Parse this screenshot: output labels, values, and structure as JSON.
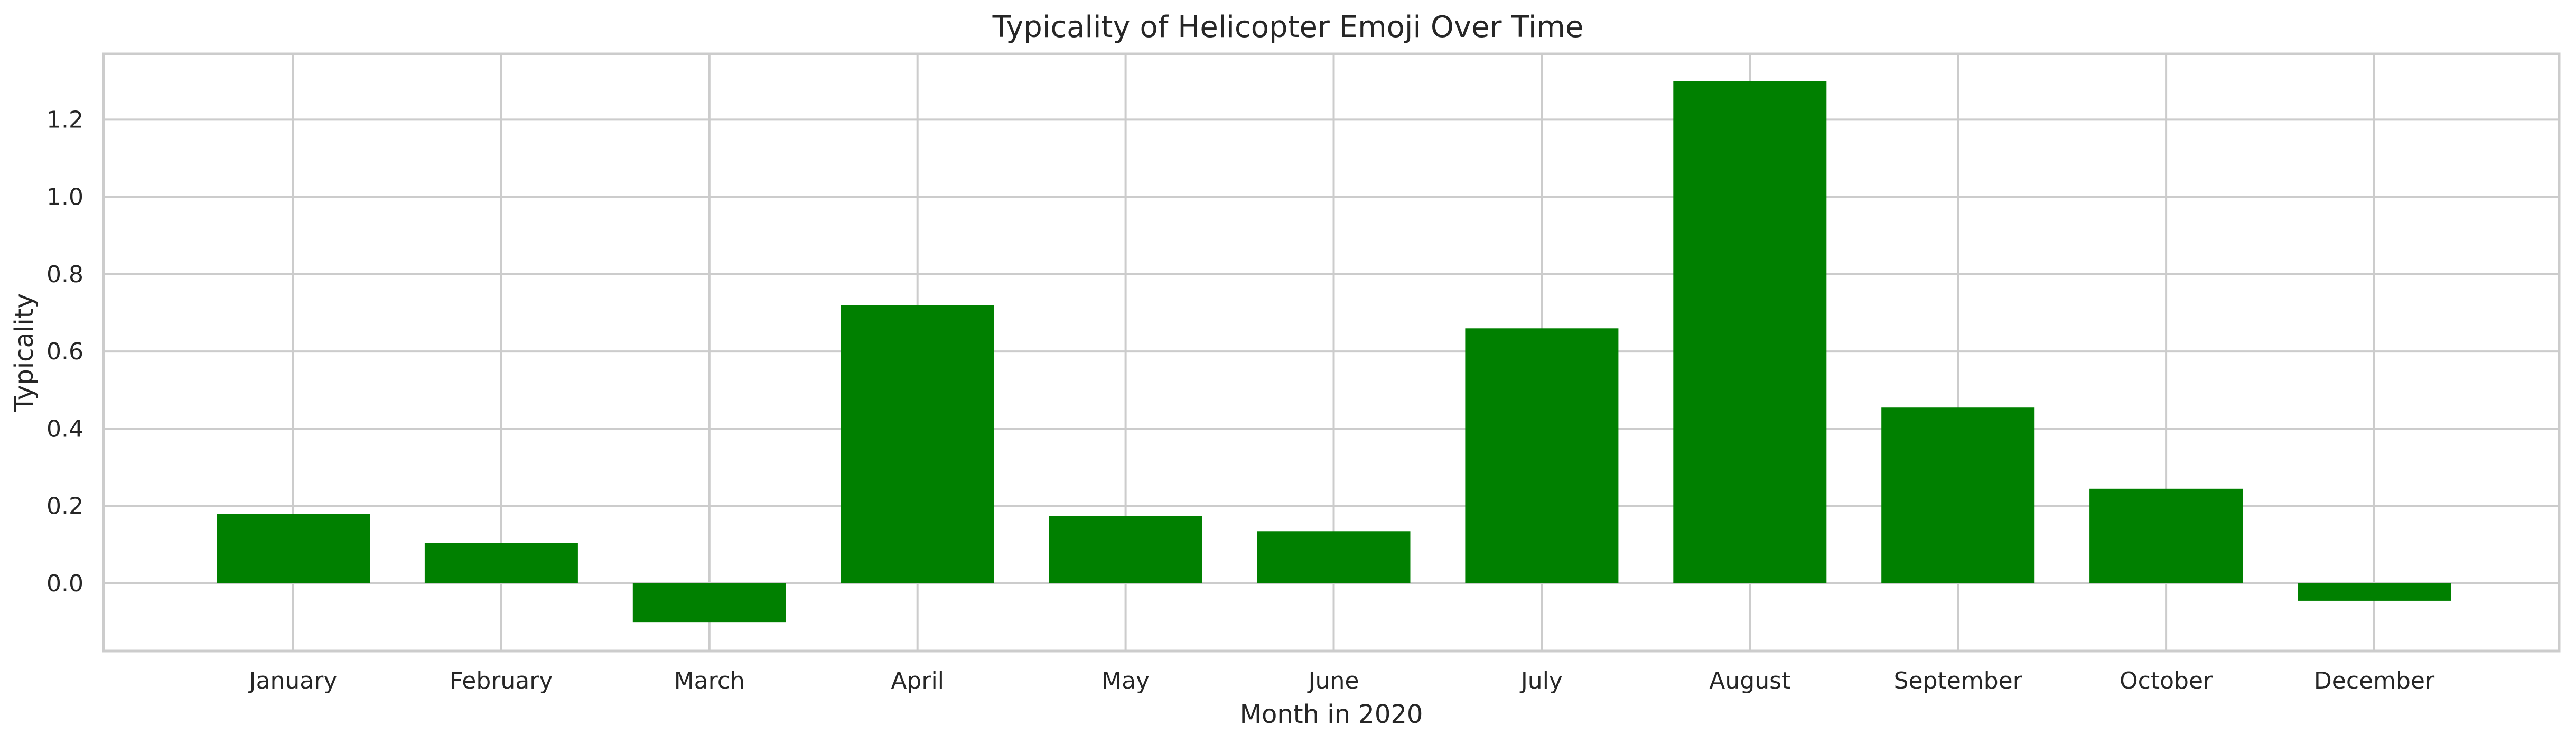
{
  "chart_data": {
    "type": "bar",
    "title": "Typicality of Helicopter Emoji Over Time",
    "xlabel": "Month in 2020",
    "ylabel": "Typicality",
    "categories": [
      "January",
      "February",
      "March",
      "April",
      "May",
      "June",
      "July",
      "August",
      "September",
      "October",
      "December"
    ],
    "values": [
      0.18,
      0.105,
      -0.1,
      0.72,
      0.175,
      0.135,
      0.66,
      1.3,
      0.455,
      0.245,
      -0.045
    ],
    "ylim": [
      -0.175,
      1.37
    ],
    "yticks": [
      0.0,
      0.2,
      0.4,
      0.6,
      0.8,
      1.0,
      1.2
    ],
    "ytick_labels": [
      "0.0",
      "0.2",
      "0.4",
      "0.6",
      "0.8",
      "1.0",
      "1.2"
    ],
    "grid": true,
    "colors": {
      "bar": "#008000",
      "grid": "#cccccc"
    }
  }
}
